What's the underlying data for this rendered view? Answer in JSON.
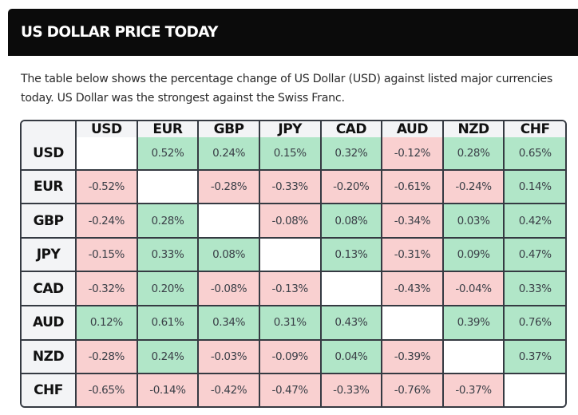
{
  "header": {
    "title": "US DOLLAR PRICE TODAY"
  },
  "description": "The table below shows the percentage change of US Dollar (USD) against listed major currencies today. US Dollar was the strongest against the Swiss Franc.",
  "colors": {
    "positive": "#b1e6c8",
    "negative": "#f9d0d0",
    "header_bg": "#0b0b0b",
    "border": "#353a42"
  },
  "table": {
    "columns": [
      "USD",
      "EUR",
      "GBP",
      "JPY",
      "CAD",
      "AUD",
      "NZD",
      "CHF"
    ],
    "rows": [
      {
        "label": "USD",
        "cells": [
          "",
          "0.52%",
          "0.24%",
          "0.15%",
          "0.32%",
          "-0.12%",
          "0.28%",
          "0.65%"
        ]
      },
      {
        "label": "EUR",
        "cells": [
          "-0.52%",
          "",
          "-0.28%",
          "-0.33%",
          "-0.20%",
          "-0.61%",
          "-0.24%",
          "0.14%"
        ]
      },
      {
        "label": "GBP",
        "cells": [
          "-0.24%",
          "0.28%",
          "",
          "-0.08%",
          "0.08%",
          "-0.34%",
          "0.03%",
          "0.42%"
        ]
      },
      {
        "label": "JPY",
        "cells": [
          "-0.15%",
          "0.33%",
          "0.08%",
          "",
          "0.13%",
          "-0.31%",
          "0.09%",
          "0.47%"
        ]
      },
      {
        "label": "CAD",
        "cells": [
          "-0.32%",
          "0.20%",
          "-0.08%",
          "-0.13%",
          "",
          "-0.43%",
          "-0.04%",
          "0.33%"
        ]
      },
      {
        "label": "AUD",
        "cells": [
          "0.12%",
          "0.61%",
          "0.34%",
          "0.31%",
          "0.43%",
          "",
          "0.39%",
          "0.76%"
        ]
      },
      {
        "label": "NZD",
        "cells": [
          "-0.28%",
          "0.24%",
          "-0.03%",
          "-0.09%",
          "0.04%",
          "-0.39%",
          "",
          "0.37%"
        ]
      },
      {
        "label": "CHF",
        "cells": [
          "-0.65%",
          "-0.14%",
          "-0.42%",
          "-0.47%",
          "-0.33%",
          "-0.76%",
          "-0.37%",
          ""
        ]
      }
    ]
  }
}
